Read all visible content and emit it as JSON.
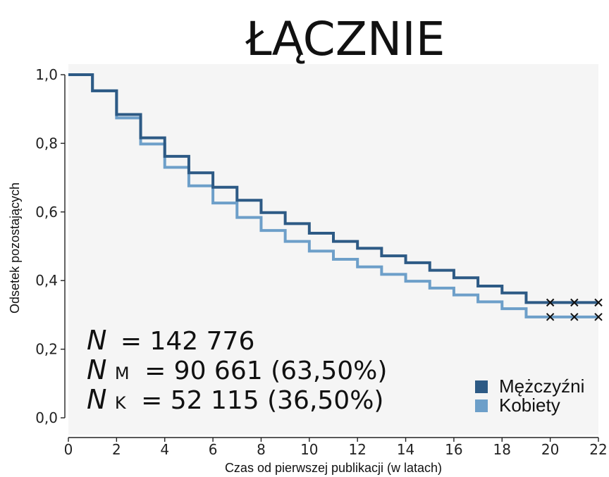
{
  "chart_data": {
    "type": "line",
    "step": true,
    "title": "ŁĄCZNIE",
    "xlabel": "Czas od pierwszej publikacji (w latach)",
    "ylabel": "Odsetek pozostających",
    "xlim": [
      0,
      22
    ],
    "ylim": [
      0,
      1
    ],
    "xticks": [
      0,
      2,
      4,
      6,
      8,
      10,
      12,
      14,
      16,
      18,
      20,
      22
    ],
    "xtick_labels": [
      "0",
      "2",
      "4",
      "6",
      "8",
      "10",
      "12",
      "14",
      "16",
      "18",
      "20",
      "22"
    ],
    "yticks": [
      0,
      0.2,
      0.4,
      0.6,
      0.8,
      1.0
    ],
    "ytick_labels": [
      "0,0",
      "0,2",
      "0,4",
      "0,6",
      "0,8",
      "1,0"
    ],
    "grid": false,
    "background": "#f5f5f5",
    "legend_position": "bottom-right",
    "series": [
      {
        "name": "Mężczyźni",
        "color": "#2d5a85",
        "x": [
          0,
          1,
          2,
          3,
          4,
          5,
          6,
          7,
          8,
          9,
          10,
          11,
          12,
          13,
          14,
          15,
          16,
          17,
          18,
          19,
          20,
          21,
          22
        ],
        "y": [
          1.0,
          0.953,
          0.884,
          0.816,
          0.762,
          0.714,
          0.672,
          0.634,
          0.598,
          0.566,
          0.538,
          0.514,
          0.494,
          0.472,
          0.452,
          0.43,
          0.408,
          0.384,
          0.364,
          0.336,
          0.336,
          0.336,
          0.336
        ],
        "censored_x": [
          20,
          21,
          22
        ]
      },
      {
        "name": "Kobiety",
        "color": "#6d9fc9",
        "x": [
          0,
          1,
          2,
          3,
          4,
          5,
          6,
          7,
          8,
          9,
          10,
          11,
          12,
          13,
          14,
          15,
          16,
          17,
          18,
          19,
          20,
          21,
          22
        ],
        "y": [
          1.0,
          0.953,
          0.874,
          0.798,
          0.73,
          0.676,
          0.626,
          0.584,
          0.546,
          0.514,
          0.486,
          0.462,
          0.44,
          0.418,
          0.398,
          0.378,
          0.358,
          0.338,
          0.318,
          0.294,
          0.294,
          0.294,
          0.294
        ],
        "censored_x": [
          20,
          21,
          22
        ]
      }
    ],
    "annotations": {
      "n_total": {
        "symbol": "N",
        "text": "= 142 776"
      },
      "n_men": {
        "symbol": "N",
        "sub": "M",
        "text": "= 90 661 (63,50%)"
      },
      "n_women": {
        "symbol": "N",
        "sub": "K",
        "text": "= 52 115 (36,50%)"
      }
    }
  }
}
